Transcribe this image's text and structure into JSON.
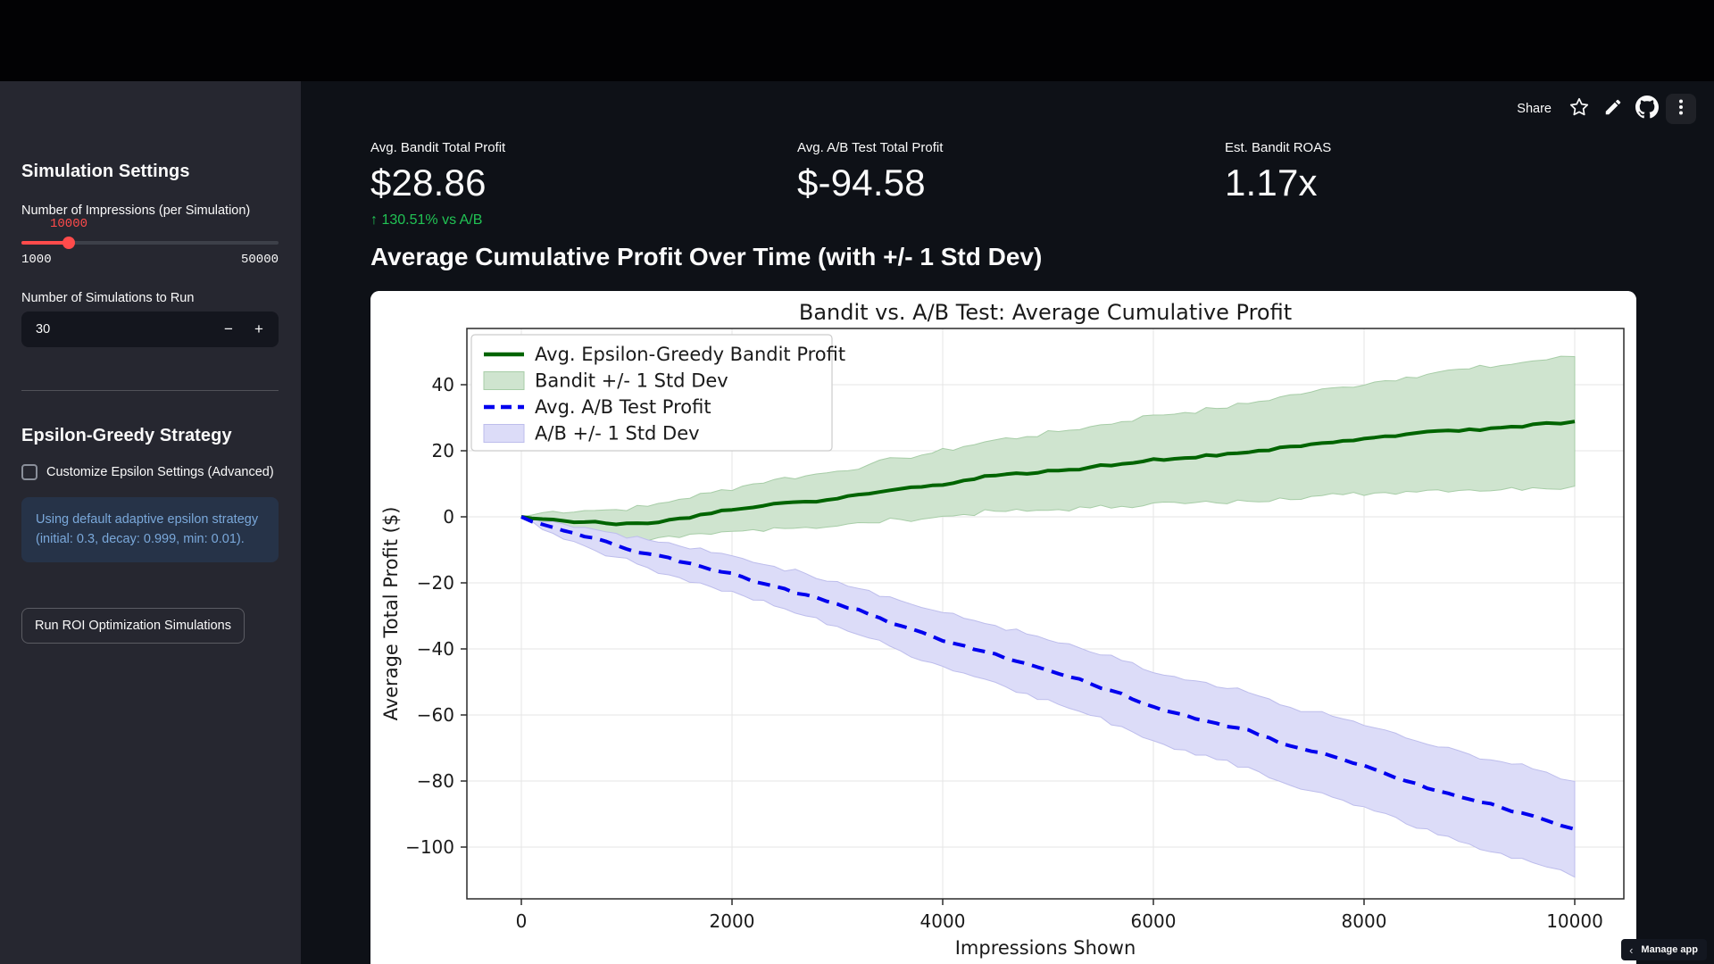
{
  "sidebar": {
    "settings_header": "Simulation Settings",
    "impressions": {
      "label": "Number of Impressions (per Simulation)",
      "value": "10000",
      "min": "1000",
      "max": "50000"
    },
    "simulations": {
      "label": "Number of Simulations to Run",
      "value": "30",
      "minus": "−",
      "plus": "+"
    },
    "strategy_header": "Epsilon-Greedy Strategy",
    "checkbox_label": "Customize Epsilon Settings (Advanced)",
    "info_text": "Using default adaptive epsilon strategy (initial: 0.3, decay: 0.999, min: 0.01).",
    "run_button": "Run ROI Optimization Simulations"
  },
  "toolbar": {
    "share": "Share"
  },
  "metrics": [
    {
      "label": "Avg. Bandit Total Profit",
      "value": "$28.86",
      "delta_arrow": "↑",
      "delta": "130.51% vs A/B"
    },
    {
      "label": "Avg. A/B Test Total Profit",
      "value": "$-94.58"
    },
    {
      "label": "Est. Bandit ROAS",
      "value": "1.17x"
    }
  ],
  "section_heading": "Average Cumulative Profit Over Time (with +/- 1 Std Dev)",
  "manage_app": {
    "chevron": "‹",
    "label": "Manage app"
  },
  "chart_data": {
    "type": "line",
    "title": "Bandit vs. A/B Test: Average Cumulative Profit",
    "xlabel": "Impressions Shown",
    "ylabel": "Average Total Profit ($)",
    "xlim": [
      -500,
      10500
    ],
    "ylim": [
      -115,
      57
    ],
    "grid": true,
    "legend_position": "upper left",
    "xticks": [
      0,
      2000,
      4000,
      6000,
      8000,
      10000
    ],
    "xtick_labels": [
      "0",
      "2000",
      "4000",
      "6000",
      "8000",
      "10000"
    ],
    "yticks": [
      40,
      20,
      0,
      -20,
      -40,
      -60,
      -80,
      -100
    ],
    "ytick_labels": [
      "40",
      "20",
      "0",
      "−20",
      "−40",
      "−60",
      "−80",
      "−100"
    ],
    "x": [
      0,
      300,
      600,
      900,
      1200,
      1500,
      1800,
      2100,
      2400,
      2700,
      3000,
      3300,
      3600,
      3900,
      4200,
      4500,
      4800,
      5100,
      5400,
      5700,
      6000,
      6300,
      6600,
      6900,
      7200,
      7500,
      7800,
      8100,
      8400,
      8700,
      9000,
      9300,
      9600,
      10000
    ],
    "series": [
      {
        "name": "Avg. Epsilon-Greedy Bandit Profit",
        "type": "line",
        "style": "solid",
        "color": "#006400",
        "y": [
          0,
          -0.8,
          -1.6,
          -2.3,
          -2,
          -0.5,
          1,
          2.5,
          4,
          4.6,
          5.5,
          7,
          8.5,
          9.5,
          11,
          12.5,
          13,
          14,
          15,
          16,
          17.5,
          17.8,
          18.5,
          19.5,
          21,
          22,
          23,
          24,
          25,
          26,
          26.5,
          27,
          28,
          28.86
        ]
      },
      {
        "name": "Bandit +/- 1 Std Dev",
        "type": "band",
        "fill": "#cfe4cf",
        "edge": "#a7cda7",
        "upper": [
          0,
          1.7,
          1.9,
          2.2,
          3.2,
          5.3,
          7.3,
          9.3,
          11.3,
          12.4,
          13.8,
          15.8,
          17.8,
          19.3,
          21.3,
          23.3,
          24.3,
          25.8,
          27.3,
          28.8,
          30.8,
          31.6,
          32.8,
          34.3,
          36.3,
          37.8,
          39.3,
          40.8,
          42.3,
          43.8,
          44.8,
          45.8,
          47.2,
          48.5
        ],
        "lower": [
          0,
          -3.3,
          -5.1,
          -6.8,
          -7.2,
          -6.3,
          -5.3,
          -4.3,
          -3.3,
          -3.2,
          -2.8,
          -1.8,
          -0.8,
          -0.3,
          0.7,
          1.7,
          1.7,
          2.2,
          2.7,
          3.2,
          4.2,
          4,
          4.2,
          4.7,
          5.7,
          6.2,
          6.7,
          7.2,
          7.7,
          8.2,
          8.2,
          8.2,
          8.8,
          9.3
        ]
      },
      {
        "name": "Avg. A/B Test Profit",
        "type": "line",
        "style": "dashed",
        "color": "#0000ee",
        "y": [
          0,
          -3.2,
          -6,
          -8.6,
          -11.2,
          -13.6,
          -16,
          -18.2,
          -21,
          -23.6,
          -26.4,
          -29.5,
          -33,
          -36.2,
          -39,
          -41.5,
          -44.5,
          -47.5,
          -50.5,
          -53.5,
          -57.5,
          -60,
          -62.5,
          -64.5,
          -68.5,
          -71,
          -73.5,
          -76.5,
          -80,
          -83,
          -85.5,
          -88,
          -90.5,
          -94.58
        ]
      },
      {
        "name": "A/B +/- 1 Std Dev",
        "type": "band",
        "fill": "#dcdcf8",
        "edge": "#bdbdec",
        "upper": [
          0,
          -1.4,
          -3.2,
          -5,
          -7,
          -8.8,
          -10.8,
          -12.6,
          -15,
          -17.2,
          -19.6,
          -22.3,
          -25.4,
          -28.2,
          -30.7,
          -32.9,
          -35.5,
          -38.2,
          -40.9,
          -43.5,
          -47.2,
          -49.4,
          -51.5,
          -53.2,
          -56.9,
          -59,
          -61.2,
          -63.9,
          -67,
          -69.7,
          -71.9,
          -74.1,
          -76.3,
          -80.1
        ],
        "lower": [
          0,
          -5,
          -8.8,
          -12.2,
          -15.4,
          -18.4,
          -21.2,
          -23.8,
          -27,
          -30,
          -33.2,
          -36.7,
          -40.6,
          -44.2,
          -47.3,
          -50.1,
          -53.5,
          -56.8,
          -60.1,
          -63.5,
          -67.8,
          -70.6,
          -73.5,
          -75.8,
          -80.1,
          -83,
          -85.8,
          -89.1,
          -93,
          -96.3,
          -99.1,
          -101.9,
          -104.7,
          -109.1
        ]
      }
    ]
  }
}
